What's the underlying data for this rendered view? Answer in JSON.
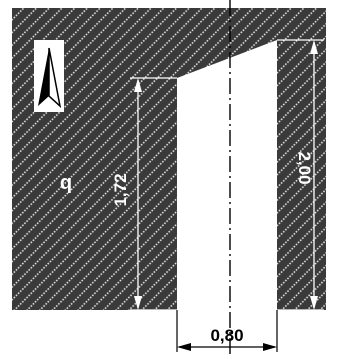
{
  "dimensions": {
    "left_height": "1,72",
    "right_height": "2,00",
    "gap_width": "0,80"
  },
  "labels": {
    "region_symbol": "b"
  },
  "icons": {
    "north_arrow": "north-arrow-icon"
  },
  "colors": {
    "fill": "#3a3a3a",
    "hatch": "#e6e6e6",
    "background": "#ffffff",
    "line": "#000000"
  }
}
